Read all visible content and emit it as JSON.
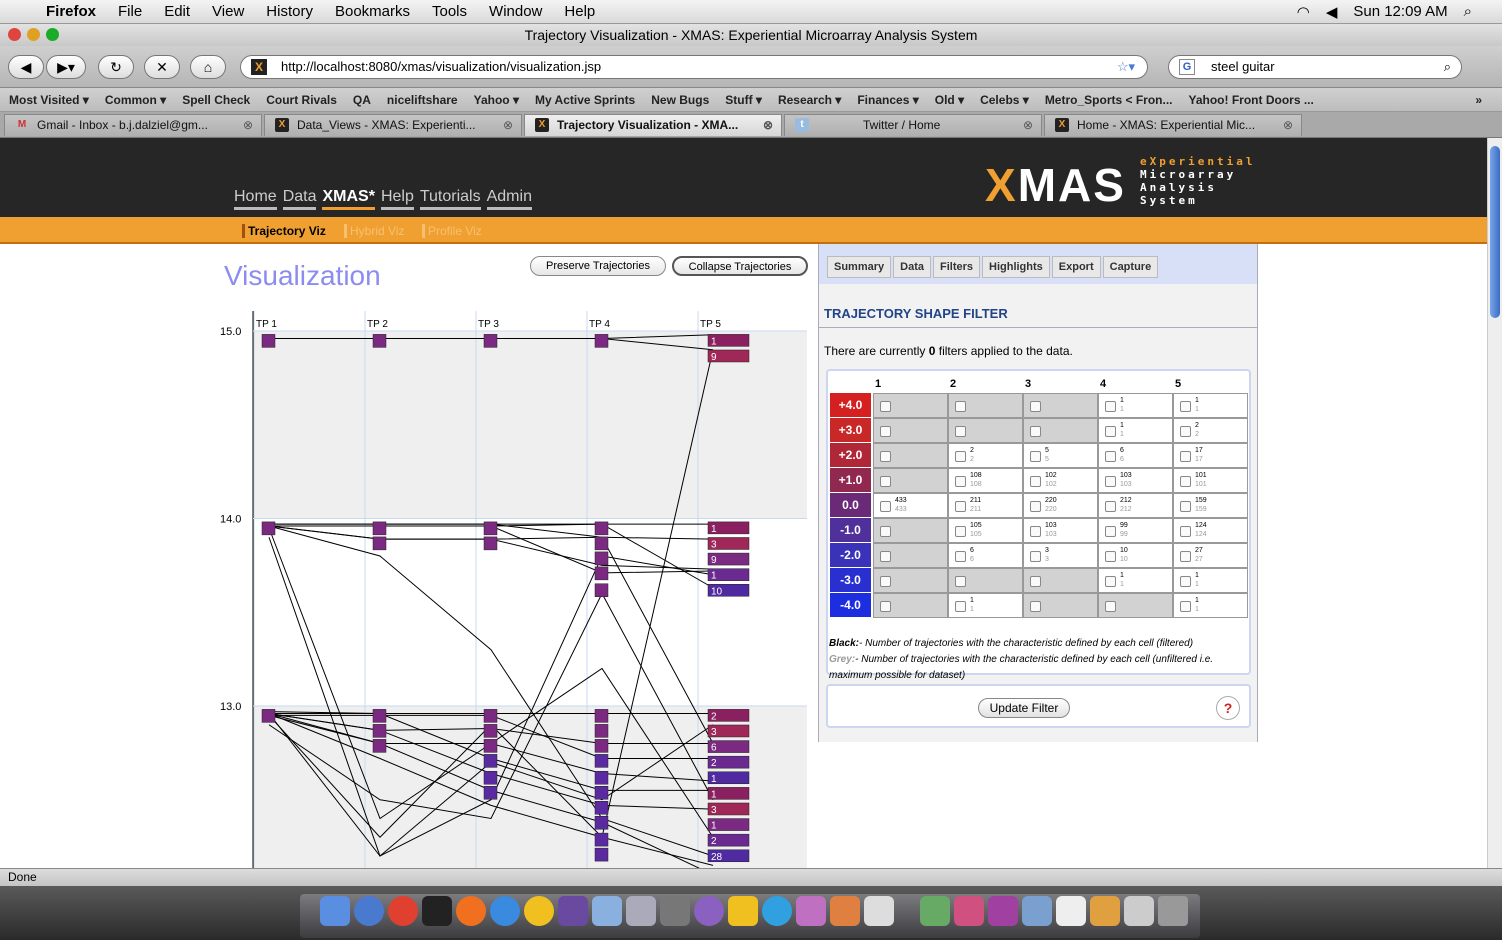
{
  "menubar": {
    "app": "Firefox",
    "items": [
      "File",
      "Edit",
      "View",
      "History",
      "Bookmarks",
      "Tools",
      "Window",
      "Help"
    ],
    "clock": "Sun 12:09 AM"
  },
  "window": {
    "title": "Trajectory Visualization - XMAS: Experiential Microarray Analysis System"
  },
  "navbar": {
    "url": "http://localhost:8080/xmas/visualization/visualization.jsp",
    "search_value": "steel guitar"
  },
  "bookmarks": [
    "Most Visited ▾",
    "Common ▾",
    "Spell Check",
    "Court Rivals",
    "QA",
    "niceliftshare",
    "Yahoo ▾",
    "My Active Sprints",
    "New Bugs",
    "Stuff ▾",
    "Research ▾",
    "Finances ▾",
    "Old ▾",
    "Celebs ▾",
    "Metro_Sports < Fron...",
    "Yahoo! Front Doors ..."
  ],
  "tabs": [
    {
      "label": "Gmail - Inbox - b.j.dalziel@gm...",
      "icon": "gmail-icon"
    },
    {
      "label": "Data_Views - XMAS: Experienti...",
      "icon": "xmas-icon"
    },
    {
      "label": "Trajectory Visualization - XMA...",
      "icon": "xmas-icon",
      "active": true
    },
    {
      "label": "Twitter / Home",
      "icon": "twitter-icon"
    },
    {
      "label": "Home - XMAS: Experiential Mic...",
      "icon": "xmas-icon"
    }
  ],
  "site": {
    "logo_x": "X",
    "logo_rest": "MAS",
    "logo_tag": [
      "eXperiential",
      "Microarray",
      "Analysis",
      "System"
    ],
    "nav": [
      "Home",
      "Data",
      "XMAS*",
      "Help",
      "Tutorials",
      "Admin"
    ],
    "subnav": [
      "Trajectory Viz",
      "Hybrid Viz",
      "Profile Viz"
    ]
  },
  "viz": {
    "title": "Visualization",
    "preserve_label": "Preserve Trajectories",
    "collapse_label": "Collapse Trajectories"
  },
  "chart_data": {
    "type": "line",
    "x": [
      "TP 1",
      "TP 2",
      "TP 3",
      "TP 4",
      "TP 5"
    ],
    "y_ticks": [
      15.0,
      14.0,
      13.0
    ],
    "y_tick_labels": [
      "15.0",
      "14.0",
      "13.0"
    ],
    "ylim": [
      12.15,
      15.15
    ],
    "node_count_labels": {
      "15.0": [
        "1",
        "9"
      ],
      "14.0": [
        "1",
        "3",
        "9",
        "1",
        "10"
      ],
      "13.0": [
        "2",
        "3",
        "6",
        "2",
        "1",
        "1",
        "3",
        "1",
        "2",
        "28"
      ]
    }
  },
  "panel": {
    "tabs": [
      "Summary",
      "Data",
      "Filters",
      "Highlights",
      "Export",
      "Capture"
    ],
    "title": "TRAJECTORY SHAPE FILTER",
    "info_pre": "There are currently ",
    "info_count": "0",
    "info_post": " filters applied to the data.",
    "columns": [
      "1",
      "2",
      "3",
      "4",
      "5"
    ],
    "rows": [
      {
        "label": "+4.0",
        "color": "#d42020",
        "cells": [
          null,
          null,
          null,
          [
            "1",
            "1"
          ],
          [
            "1",
            "1"
          ]
        ]
      },
      {
        "label": "+3.0",
        "color": "#c82828",
        "cells": [
          null,
          null,
          null,
          [
            "1",
            "1"
          ],
          [
            "2",
            "2"
          ]
        ]
      },
      {
        "label": "+2.0",
        "color": "#b02838",
        "cells": [
          null,
          [
            "2",
            "2"
          ],
          [
            "5",
            "5"
          ],
          [
            "6",
            "6"
          ],
          [
            "17",
            "17"
          ]
        ]
      },
      {
        "label": "+1.0",
        "color": "#902850",
        "cells": [
          null,
          [
            "108",
            "108"
          ],
          [
            "102",
            "102"
          ],
          [
            "103",
            "103"
          ],
          [
            "101",
            "101"
          ]
        ]
      },
      {
        "label": "0.0",
        "color": "#6a2a78",
        "cells": [
          [
            "433",
            "433"
          ],
          [
            "211",
            "211"
          ],
          [
            "220",
            "220"
          ],
          [
            "212",
            "212"
          ],
          [
            "159",
            "159"
          ]
        ]
      },
      {
        "label": "-1.0",
        "color": "#50309a",
        "cells": [
          null,
          [
            "105",
            "105"
          ],
          [
            "103",
            "103"
          ],
          [
            "99",
            "99"
          ],
          [
            "124",
            "124"
          ]
        ]
      },
      {
        "label": "-2.0",
        "color": "#3a32b8",
        "cells": [
          null,
          [
            "6",
            "6"
          ],
          [
            "3",
            "3"
          ],
          [
            "10",
            "10"
          ],
          [
            "27",
            "27"
          ]
        ]
      },
      {
        "label": "-3.0",
        "color": "#2a30d0",
        "cells": [
          null,
          null,
          null,
          [
            "1",
            "1"
          ],
          [
            "1",
            "1"
          ]
        ]
      },
      {
        "label": "-4.0",
        "color": "#1c2ee0",
        "cells": [
          null,
          [
            "1",
            "1"
          ],
          null,
          null,
          [
            "1",
            "1"
          ]
        ]
      }
    ],
    "legend_black_key": "Black:",
    "legend_black": "- Number of trajectories with the characteristic defined by each cell (filtered)",
    "legend_grey_key": "Grey:",
    "legend_grey": "- Number of trajectories with the characteristic defined by each cell (unfiltered i.e. maximum possible for dataset)",
    "update_label": "Update Filter",
    "help_label": "?"
  },
  "status": "Done"
}
